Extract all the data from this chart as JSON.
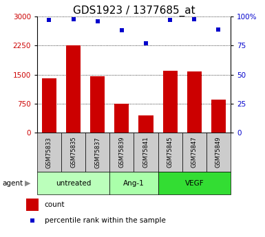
{
  "title": "GDS1923 / 1377685_at",
  "samples": [
    "GSM75833",
    "GSM75835",
    "GSM75837",
    "GSM75839",
    "GSM75841",
    "GSM75845",
    "GSM75847",
    "GSM75849"
  ],
  "counts": [
    1400,
    2250,
    1450,
    750,
    450,
    1600,
    1575,
    850
  ],
  "percentiles": [
    97,
    98,
    96,
    88,
    77,
    97,
    98,
    89
  ],
  "ylim_left": [
    0,
    3000
  ],
  "ylim_right": [
    0,
    100
  ],
  "yticks_left": [
    0,
    750,
    1500,
    2250,
    3000
  ],
  "yticks_right": [
    0,
    25,
    50,
    75,
    100
  ],
  "bar_color": "#cc0000",
  "dot_color": "#0000cc",
  "groups": [
    {
      "label": "untreated",
      "indices": [
        0,
        1,
        2
      ],
      "color": "#bbffbb"
    },
    {
      "label": "Ang-1",
      "indices": [
        3,
        4
      ],
      "color": "#aaffaa"
    },
    {
      "label": "VEGF",
      "indices": [
        5,
        6,
        7
      ],
      "color": "#33dd33"
    }
  ],
  "agent_label": "agent",
  "legend_count_label": "count",
  "legend_pct_label": "percentile rank within the sample",
  "background_color": "#ffffff",
  "sample_box_color": "#cccccc",
  "title_fontsize": 11,
  "tick_fontsize": 7.5,
  "bar_width": 0.6
}
